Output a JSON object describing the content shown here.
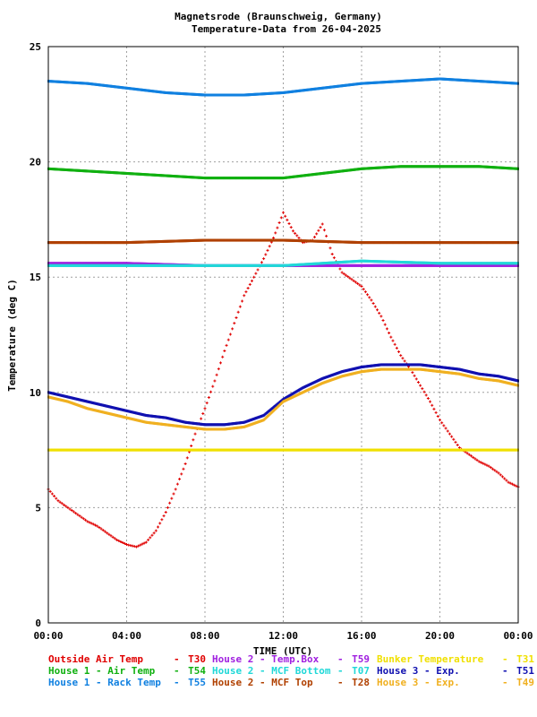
{
  "chart_data": {
    "type": "scatter",
    "title": "Magnetsrode (Braunschweig, Germany)",
    "subtitle": "Temperature-Data from 26-04-2025",
    "xlabel": "TIME (UTC)",
    "ylabel": "Temperature (deg C)",
    "x_unit": "hours",
    "xlim": [
      0,
      24
    ],
    "ylim": [
      0,
      25
    ],
    "x_ticks": [
      "00:00",
      "04:00",
      "08:00",
      "12:00",
      "16:00",
      "20:00",
      "00:00"
    ],
    "y_ticks": [
      "0",
      "5",
      "10",
      "15",
      "20",
      "25"
    ],
    "grid": true,
    "legend_position": "bottom",
    "series": [
      {
        "name": "Outside Air Temp",
        "sensor": "T30",
        "color": "#e00000",
        "x": [
          0,
          0.5,
          1,
          1.5,
          2,
          2.5,
          3,
          3.5,
          4,
          4.5,
          5,
          5.5,
          6,
          6.5,
          7,
          7.5,
          8,
          8.5,
          9,
          9.5,
          10,
          10.5,
          11,
          11.5,
          12,
          12.5,
          13,
          13.5,
          14,
          14.5,
          15,
          15.5,
          16,
          16.5,
          17,
          17.5,
          18,
          18.5,
          19,
          19.5,
          20,
          20.5,
          21,
          21.5,
          22,
          22.5,
          23,
          23.5,
          24
        ],
        "y": [
          5.8,
          5.3,
          5.0,
          4.7,
          4.4,
          4.2,
          3.9,
          3.6,
          3.4,
          3.3,
          3.5,
          4.0,
          4.8,
          5.8,
          6.9,
          8.2,
          9.3,
          10.5,
          11.8,
          13.0,
          14.2,
          15.0,
          15.8,
          16.7,
          17.8,
          17.0,
          16.5,
          16.6,
          17.3,
          16.0,
          15.2,
          14.9,
          14.6,
          14.0,
          13.3,
          12.4,
          11.6,
          11.0,
          10.3,
          9.6,
          8.8,
          8.2,
          7.6,
          7.3,
          7.0,
          6.8,
          6.5,
          6.1,
          5.9
        ]
      },
      {
        "name": "House 1 - Air  Temp",
        "sensor": "T54",
        "color": "#10b010",
        "x": [
          0,
          2,
          4,
          6,
          8,
          10,
          12,
          14,
          16,
          18,
          20,
          22,
          24
        ],
        "y": [
          19.7,
          19.6,
          19.5,
          19.4,
          19.3,
          19.3,
          19.3,
          19.5,
          19.7,
          19.8,
          19.8,
          19.8,
          19.7
        ]
      },
      {
        "name": "House 1 - Rack Temp",
        "sensor": "T55",
        "color": "#1080e0",
        "x": [
          0,
          2,
          4,
          6,
          8,
          10,
          12,
          14,
          16,
          18,
          20,
          22,
          24
        ],
        "y": [
          23.5,
          23.4,
          23.2,
          23.0,
          22.9,
          22.9,
          23.0,
          23.2,
          23.4,
          23.5,
          23.6,
          23.5,
          23.4
        ]
      },
      {
        "name": "House 2 - Temp.Box",
        "sensor": "T59",
        "color": "#a020e0",
        "x": [
          0,
          4,
          8,
          12,
          16,
          20,
          24
        ],
        "y": [
          15.6,
          15.6,
          15.5,
          15.5,
          15.5,
          15.5,
          15.5
        ]
      },
      {
        "name": "House 2 - MCF Bottom",
        "sensor": "T07",
        "color": "#20d8d8",
        "x": [
          0,
          4,
          8,
          12,
          16,
          20,
          24
        ],
        "y": [
          15.5,
          15.5,
          15.5,
          15.5,
          15.7,
          15.6,
          15.6
        ]
      },
      {
        "name": "House 2 - MCF Top",
        "sensor": "T28",
        "color": "#b04000",
        "x": [
          0,
          4,
          8,
          12,
          16,
          20,
          24
        ],
        "y": [
          16.5,
          16.5,
          16.6,
          16.6,
          16.5,
          16.5,
          16.5
        ]
      },
      {
        "name": "Bunker Temperature",
        "sensor": "T31",
        "color": "#f0e000",
        "x": [
          0,
          4,
          8,
          12,
          16,
          20,
          24
        ],
        "y": [
          7.5,
          7.5,
          7.5,
          7.5,
          7.5,
          7.5,
          7.5
        ]
      },
      {
        "name": "House 3 - Exp.",
        "sensor": "T51",
        "color": "#1010b0",
        "x": [
          0,
          1,
          2,
          3,
          4,
          5,
          6,
          7,
          8,
          9,
          10,
          11,
          12,
          13,
          14,
          15,
          16,
          17,
          18,
          19,
          20,
          21,
          22,
          23,
          24
        ],
        "y": [
          10.0,
          9.8,
          9.6,
          9.4,
          9.2,
          9.0,
          8.9,
          8.7,
          8.6,
          8.6,
          8.7,
          9.0,
          9.7,
          10.2,
          10.6,
          10.9,
          11.1,
          11.2,
          11.2,
          11.2,
          11.1,
          11.0,
          10.8,
          10.7,
          10.5
        ]
      },
      {
        "name": "House 3 - Exp.",
        "sensor": "T49",
        "color": "#f0b020",
        "x": [
          0,
          1,
          2,
          3,
          4,
          5,
          6,
          7,
          8,
          9,
          10,
          11,
          12,
          13,
          14,
          15,
          16,
          17,
          18,
          19,
          20,
          21,
          22,
          23,
          24
        ],
        "y": [
          9.8,
          9.6,
          9.3,
          9.1,
          8.9,
          8.7,
          8.6,
          8.5,
          8.4,
          8.4,
          8.5,
          8.8,
          9.6,
          10.0,
          10.4,
          10.7,
          10.9,
          11.0,
          11.0,
          11.0,
          10.9,
          10.8,
          10.6,
          10.5,
          10.3
        ]
      }
    ]
  }
}
